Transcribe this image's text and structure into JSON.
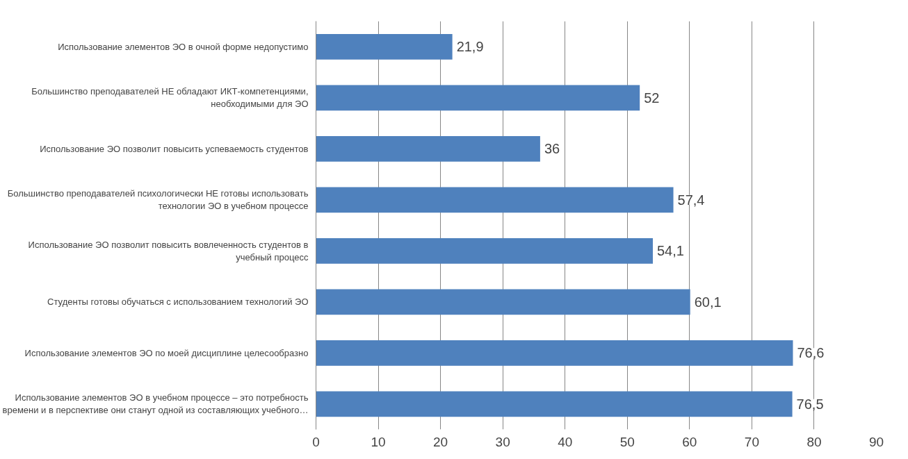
{
  "chart_data": {
    "type": "bar",
    "orientation": "horizontal",
    "categories": [
      "Использование элементов ЭО в очной форме недопустимо",
      "Большинство преподавателей НЕ обладают ИКТ-компетенциями, необходимыми для ЭО",
      "Использование ЭО позволит повысить успеваемость студентов",
      "Большинство преподавателей психологически НЕ готовы использовать технологии ЭО в учебном процессе",
      "Использование ЭО позволит повысить вовлеченность студентов в учебный процесс",
      "Студенты готовы обучаться с использованием технологий ЭО",
      "Использование элементов ЭО по моей дисциплине целесообразно",
      "Использование элементов ЭО в учебном процессе – это потребность времени и в перспективе они станут одной из составляющих учебного…"
    ],
    "values": [
      21.9,
      52,
      36,
      57.4,
      54.1,
      60.1,
      76.6,
      76.5
    ],
    "value_labels": [
      "21,9",
      "52",
      "36",
      "57,4",
      "54,1",
      "60,1",
      "76,6",
      "76,5"
    ],
    "color": "#4f81bd",
    "xlim": [
      0,
      90
    ],
    "xticks": [
      0,
      10,
      20,
      30,
      40,
      50,
      60,
      70,
      80,
      90
    ],
    "grid": "x"
  }
}
